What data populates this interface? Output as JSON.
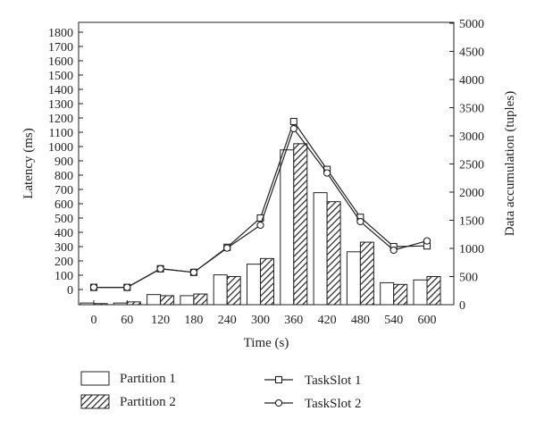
{
  "chart_data": {
    "type": "bar",
    "x": [
      0,
      60,
      120,
      180,
      240,
      300,
      360,
      420,
      480,
      540,
      600
    ],
    "xlabel": "Time (s)",
    "ylabel_left": "Latency (ms)",
    "ylabel_right": "Data accumulation (tuples)",
    "ylim_left": [
      -120,
      1800
    ],
    "yticks_left": [
      0,
      100,
      200,
      300,
      400,
      500,
      600,
      700,
      800,
      900,
      1000,
      1100,
      1200,
      1300,
      1400,
      1500,
      1600,
      1700,
      1800
    ],
    "ylim_right": [
      0,
      5000
    ],
    "yticks_right": [
      0,
      500,
      1000,
      1500,
      2000,
      2500,
      3000,
      3500,
      4000,
      4500,
      5000
    ],
    "grid": false,
    "bar_series": [
      {
        "name": "Partition 1",
        "axis": "right",
        "pattern": "white",
        "values": [
          30,
          30,
          180,
          160,
          530,
          720,
          2750,
          1990,
          940,
          390,
          440
        ]
      },
      {
        "name": "Partition 2",
        "axis": "right",
        "pattern": "hatched",
        "values": [
          20,
          50,
          160,
          190,
          500,
          820,
          2860,
          1830,
          1110,
          360,
          500
        ]
      }
    ],
    "line_series": [
      {
        "name": "TaskSlot 1",
        "axis": "left",
        "marker": "square",
        "values": [
          15,
          15,
          145,
          120,
          295,
          500,
          1175,
          840,
          505,
          300,
          305
        ]
      },
      {
        "name": "TaskSlot 2",
        "axis": "left",
        "marker": "circle",
        "values": [
          15,
          15,
          145,
          120,
          290,
          450,
          1125,
          815,
          475,
          275,
          340
        ]
      }
    ],
    "legend": {
      "placement": "bottom"
    }
  }
}
